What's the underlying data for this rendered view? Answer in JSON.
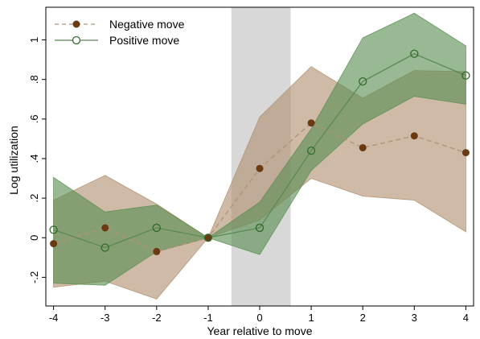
{
  "chart_data": {
    "type": "line",
    "xlabel": "Year relative to move",
    "ylabel": "Log utilization",
    "x": [
      -4,
      -3,
      -2,
      -1,
      0,
      1,
      2,
      3,
      4
    ],
    "x_ticks": [
      "-4",
      "-3",
      "-2",
      "-1",
      "0",
      "1",
      "2",
      "3",
      "4"
    ],
    "y_ticks": [
      "-.2",
      "0",
      ".2",
      ".4",
      ".6",
      ".8",
      "1"
    ],
    "y_tick_values": [
      -0.2,
      0,
      0.2,
      0.4,
      0.6,
      0.8,
      1.0
    ],
    "xlim": [
      -4.15,
      4.15
    ],
    "ylim": [
      -0.345,
      1.165
    ],
    "shaded_region": {
      "x0": -0.55,
      "x1": 0.6,
      "color": "#d8d8d8"
    },
    "legend_position": "top-left",
    "series": [
      {
        "name": "Negative move",
        "color": "#6b3a12",
        "line_color": "#b29276",
        "band_color": "#b09070",
        "marker": "filled-circle",
        "line_style": "dashed",
        "values": [
          -0.03,
          0.05,
          -0.07,
          0.0,
          0.35,
          0.58,
          0.455,
          0.515,
          0.43
        ],
        "ci_low": [
          -0.25,
          -0.22,
          -0.31,
          0.0,
          0.09,
          0.3,
          0.21,
          0.19,
          0.03
        ],
        "ci_high": [
          0.19,
          0.315,
          0.17,
          0.0,
          0.61,
          0.865,
          0.705,
          0.845,
          0.84
        ]
      },
      {
        "name": "Positive move",
        "color": "#2e6b2a",
        "line_color": "#5a8a55",
        "band_color": "#5a8e52",
        "marker": "hollow-circle",
        "line_style": "solid",
        "values": [
          0.04,
          -0.05,
          0.05,
          0.0,
          0.05,
          0.44,
          0.79,
          0.93,
          0.82
        ],
        "ci_low": [
          -0.23,
          -0.24,
          -0.07,
          0.0,
          -0.085,
          0.34,
          0.575,
          0.715,
          0.675
        ],
        "ci_high": [
          0.305,
          0.13,
          0.165,
          0.0,
          0.18,
          0.55,
          1.01,
          1.135,
          0.97
        ]
      }
    ]
  }
}
